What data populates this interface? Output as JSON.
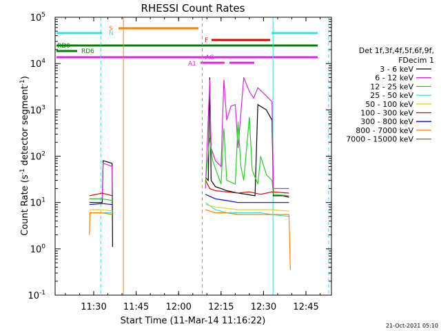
{
  "chart_data": {
    "type": "line",
    "title": "RHESSI Count Rates",
    "xlabel": "Start Time (11-Mar-14 11:16:22)",
    "ylabel": "Count Rate (s",
    "ylabel_sup": "-1",
    "ylabel_mid": " detector segment",
    "ylabel_sup2": "-1",
    "ylabel_end": ")",
    "y_scale": "log",
    "ylim": [
      0.1,
      100000
    ],
    "xlim": [
      "11:16:22",
      "12:54:00"
    ],
    "x_ticks": [
      "11:30",
      "11:45",
      "12:00",
      "12:15",
      "12:30",
      "12:45"
    ],
    "y_ticks": [
      "10^-1",
      "10^0",
      "10^1",
      "10^2",
      "10^3",
      "10^4",
      "10^5"
    ],
    "legend": {
      "header": [
        "Det 1f,3f,4f,5f,6f,9f,",
        "FDecim 1"
      ],
      "placement": "right",
      "entries": [
        {
          "label": "3 - 6 keV",
          "color": "#000000"
        },
        {
          "label": "6 - 12 keV",
          "color": "#e020e0"
        },
        {
          "label": "12 - 25 keV",
          "color": "#20d020"
        },
        {
          "label": "25 - 50 keV",
          "color": "#30e0e0"
        },
        {
          "label": "50 - 100 keV",
          "color": "#e0d020"
        },
        {
          "label": "100 - 300 keV",
          "color": "#e00000"
        },
        {
          "label": "300 - 800 keV",
          "color": "#0000e0"
        },
        {
          "label": "800 - 7000 keV",
          "color": "#ff8000"
        },
        {
          "label": "7000 - 15000 keV",
          "color": "#707000"
        }
      ]
    },
    "flags": [
      {
        "label": "S",
        "color": "#ff8000"
      },
      {
        "label": "N",
        "color": "#30e0e0"
      },
      {
        "label": "F",
        "color": "#e00000"
      },
      {
        "label": "RD0",
        "color": "#008000"
      },
      {
        "label": "RD6",
        "color": "#008000"
      },
      {
        "label": "AG",
        "color": "#e020e0"
      },
      {
        "label": "A1",
        "color": "#e020e0"
      }
    ],
    "series": [
      {
        "name": "3 - 6 keV",
        "color": "#000000",
        "segments": [
          [
            [
              "11:28:30",
              10
            ],
            [
              "11:31:00",
              10
            ],
            [
              "11:33:00",
              10
            ],
            [
              "11:33:20",
              80
            ],
            [
              "11:35:00",
              75
            ],
            [
              "11:36:30",
              70
            ],
            [
              "11:36:40",
              1.1
            ]
          ],
          [
            [
              "12:09:30",
              35
            ],
            [
              "12:10:30",
              30
            ],
            [
              "12:11:00",
              5000
            ],
            [
              "12:11:30",
              30
            ],
            [
              "12:13:00",
              22
            ],
            [
              "12:15:00",
              20
            ],
            [
              "12:17:00",
              18
            ],
            [
              "12:19:00",
              17
            ],
            [
              "12:21:00",
              16
            ],
            [
              "12:24:00",
              15
            ],
            [
              "12:27:00",
              14
            ],
            [
              "12:28:00",
              1300
            ],
            [
              "12:31:00",
              1000
            ],
            [
              "12:33:00",
              600
            ],
            [
              "12:33:30",
              14
            ],
            [
              "12:37:00",
              14
            ],
            [
              "12:39:00",
              13
            ]
          ]
        ]
      },
      {
        "name": "6 - 12 keV",
        "color": "#e020e0",
        "segments": [
          [
            [
              "11:28:30",
              12
            ],
            [
              "11:31:00",
              12
            ],
            [
              "11:33:00",
              12
            ],
            [
              "11:33:20",
              70
            ],
            [
              "11:35:00",
              65
            ],
            [
              "11:36:30",
              60
            ],
            [
              "11:36:40",
              12
            ]
          ],
          [
            [
              "12:09:30",
              20
            ],
            [
              "12:11:00",
              4500
            ],
            [
              "12:11:30",
              150
            ],
            [
              "12:13:00",
              80
            ],
            [
              "12:15:00",
              60
            ],
            [
              "12:16:00",
              4500
            ],
            [
              "12:17:00",
              600
            ],
            [
              "12:18:30",
              1200
            ],
            [
              "12:20:00",
              1300
            ],
            [
              "12:21:00",
              150
            ],
            [
              "12:23:00",
              5000
            ],
            [
              "12:25:00",
              2500
            ],
            [
              "12:26:30",
              1800
            ],
            [
              "12:28:00",
              3000
            ],
            [
              "12:31:00",
              2000
            ],
            [
              "12:33:00",
              1500
            ],
            [
              "12:33:30",
              20
            ],
            [
              "12:39:00",
              20
            ]
          ]
        ]
      },
      {
        "name": "12 - 25 keV",
        "color": "#20d020",
        "segments": [
          [
            [
              "11:28:30",
              12
            ],
            [
              "11:33:00",
              12
            ],
            [
              "11:36:40",
              11
            ]
          ],
          [
            [
              "12:09:30",
              25
            ],
            [
              "12:11:00",
              250
            ],
            [
              "12:12:00",
              80
            ],
            [
              "12:15:00",
              25
            ],
            [
              "12:16:00",
              400
            ],
            [
              "12:17:00",
              30
            ],
            [
              "12:20:00",
              25
            ],
            [
              "12:21:00",
              550
            ],
            [
              "12:22:00",
              60
            ],
            [
              "12:23:00",
              30
            ],
            [
              "12:25:00",
              700
            ],
            [
              "12:26:00",
              50
            ],
            [
              "12:28:00",
              25
            ],
            [
              "12:29:00",
              100
            ],
            [
              "12:31:00",
              40
            ],
            [
              "12:33:00",
              30
            ],
            [
              "12:33:30",
              15
            ],
            [
              "12:39:00",
              14
            ]
          ]
        ]
      },
      {
        "name": "25 - 50 keV",
        "color": "#30e0e0",
        "segments": [
          [
            [
              "11:28:30",
              6
            ],
            [
              "11:33:00",
              6
            ],
            [
              "11:36:40",
              6
            ]
          ],
          [
            [
              "12:09:30",
              10
            ],
            [
              "12:13:00",
              7
            ],
            [
              "12:17:00",
              6
            ],
            [
              "12:21:00",
              6
            ],
            [
              "12:25:00",
              6
            ],
            [
              "12:29:00",
              6
            ],
            [
              "12:33:00",
              5.5
            ],
            [
              "12:39:00",
              5
            ]
          ]
        ]
      },
      {
        "name": "50 - 100 keV",
        "color": "#e0d020",
        "segments": [
          [
            [
              "11:28:30",
              7
            ],
            [
              "11:33:00",
              7
            ],
            [
              "11:36:40",
              6.5
            ]
          ],
          [
            [
              "12:09:30",
              9
            ],
            [
              "12:13:00",
              8
            ],
            [
              "12:17:00",
              7.5
            ],
            [
              "12:21:00",
              7
            ],
            [
              "12:25:00",
              7
            ],
            [
              "12:29:00",
              7
            ],
            [
              "12:33:00",
              7
            ],
            [
              "12:39:00",
              6.5
            ]
          ]
        ]
      },
      {
        "name": "100 - 300 keV",
        "color": "#e00000",
        "segments": [
          [
            [
              "11:28:30",
              14
            ],
            [
              "11:31:00",
              15
            ],
            [
              "11:33:00",
              16
            ],
            [
              "11:36:40",
              14
            ]
          ],
          [
            [
              "12:09:30",
              30
            ],
            [
              "12:11:00",
              20
            ],
            [
              "12:13:00",
              18
            ],
            [
              "12:17:00",
              17
            ],
            [
              "12:21:00",
              16
            ],
            [
              "12:25:00",
              17
            ],
            [
              "12:29:00",
              15
            ],
            [
              "12:33:00",
              17
            ],
            [
              "12:39:00",
              16
            ]
          ]
        ]
      },
      {
        "name": "300 - 800 keV",
        "color": "#0000e0",
        "segments": [
          [
            [
              "11:28:30",
              9
            ],
            [
              "11:33:00",
              9.5
            ],
            [
              "11:36:40",
              9
            ]
          ],
          [
            [
              "12:09:30",
              15
            ],
            [
              "12:13:00",
              12
            ],
            [
              "12:17:00",
              11
            ],
            [
              "12:21:00",
              10
            ],
            [
              "12:25:00",
              10
            ],
            [
              "12:29:00",
              10
            ],
            [
              "12:33:00",
              10
            ],
            [
              "12:39:00",
              10
            ]
          ]
        ]
      },
      {
        "name": "800 - 7000 keV",
        "color": "#ff8000",
        "segments": [
          [
            [
              "11:28:30",
              2
            ],
            [
              "11:28:40",
              6
            ],
            [
              "11:33:00",
              6
            ],
            [
              "11:36:40",
              5.5
            ]
          ],
          [
            [
              "12:09:30",
              7
            ],
            [
              "12:13:00",
              6
            ],
            [
              "12:17:00",
              6
            ],
            [
              "12:21:00",
              5.5
            ],
            [
              "12:25:00",
              5.5
            ],
            [
              "12:29:00",
              5.5
            ],
            [
              "12:33:00",
              5.5
            ],
            [
              "12:39:00",
              5.5
            ],
            [
              "12:39:30",
              0.35
            ]
          ]
        ]
      }
    ],
    "attenuator_lines": [
      {
        "time": "11:32:30",
        "color": "#30e0e0",
        "style": "dashed"
      },
      {
        "time": "11:40:30",
        "color": "#ff8000",
        "style": "solid"
      },
      {
        "time": "12:08:20",
        "color": "#ff8000",
        "style": "dashed"
      },
      {
        "time": "12:33:20",
        "color": "#30e0e0",
        "style": "solid"
      },
      {
        "time": "12:53:00",
        "color": "#30e0e0",
        "style": "dashed"
      }
    ]
  },
  "footer": {
    "timestamp": "21-Oct-2021 05:10"
  }
}
